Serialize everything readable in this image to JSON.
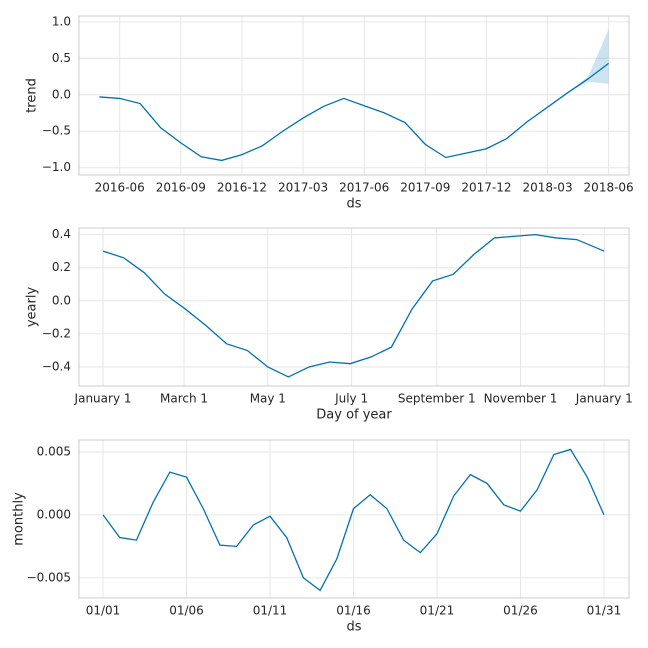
{
  "chart_data": [
    {
      "type": "line",
      "xlabel": "ds",
      "ylabel": "trend",
      "color": "#0072b2",
      "grid": true,
      "x": [
        "2016-05",
        "2016-06",
        "2016-07",
        "2016-08",
        "2016-09",
        "2016-10",
        "2016-11",
        "2016-12",
        "2017-01",
        "2017-02",
        "2017-03",
        "2017-04",
        "2017-05",
        "2017-06",
        "2017-07",
        "2017-08",
        "2017-09",
        "2017-10",
        "2017-11",
        "2017-12",
        "2018-01",
        "2018-02",
        "2018-03",
        "2018-04",
        "2018-05",
        "2018-06"
      ],
      "values": [
        -0.03,
        -0.05,
        -0.12,
        -0.45,
        -0.66,
        -0.85,
        -0.9,
        -0.82,
        -0.7,
        -0.5,
        -0.32,
        -0.16,
        -0.05,
        -0.15,
        -0.25,
        -0.38,
        -0.68,
        -0.86,
        -0.8,
        -0.74,
        -0.6,
        -0.37,
        -0.17,
        0.03,
        0.22,
        0.43
      ],
      "band": {
        "x": [
          "2018-04",
          "2018-05",
          "2018-06"
        ],
        "lower": [
          0.03,
          0.18,
          0.15
        ],
        "upper": [
          0.03,
          0.25,
          0.9
        ]
      },
      "xlim": [
        "2016-04",
        "2018-07"
      ],
      "ylim": [
        -1.1,
        1.08
      ],
      "xticks": [
        "2016-06",
        "2016-09",
        "2016-12",
        "2017-03",
        "2017-06",
        "2017-09",
        "2017-12",
        "2018-03",
        "2018-06"
      ],
      "yticks": [
        {
          "value": 1.0,
          "label": "1.0"
        },
        {
          "value": 0.5,
          "label": "0.5"
        },
        {
          "value": 0,
          "label": "0.0"
        },
        {
          "value": -0.5,
          "label": "−0.5"
        },
        {
          "value": -1.0,
          "label": "−1.0"
        }
      ]
    },
    {
      "type": "line",
      "xlabel": "Day of year",
      "ylabel": "yearly",
      "color": "#0072b2",
      "grid": true,
      "x": [
        0,
        15,
        30,
        45,
        60,
        75,
        90,
        105,
        120,
        135,
        150,
        165,
        180,
        195,
        210,
        225,
        240,
        255,
        270,
        285,
        300,
        315,
        330,
        345,
        365
      ],
      "values": [
        0.3,
        0.26,
        0.17,
        0.04,
        -0.05,
        -0.15,
        -0.26,
        -0.3,
        -0.4,
        -0.46,
        -0.4,
        -0.37,
        -0.38,
        -0.34,
        -0.28,
        -0.05,
        0.12,
        0.16,
        0.28,
        0.38,
        0.39,
        0.4,
        0.38,
        0.37,
        0.3
      ],
      "xlim": [
        -17.5,
        383
      ],
      "ylim": [
        -0.515,
        0.44
      ],
      "xticks": [
        {
          "value": 0,
          "label": "January 1"
        },
        {
          "value": 59,
          "label": "March 1"
        },
        {
          "value": 120,
          "label": "May 1"
        },
        {
          "value": 181,
          "label": "July 1"
        },
        {
          "value": 243,
          "label": "September 1"
        },
        {
          "value": 304,
          "label": "November 1"
        },
        {
          "value": 365,
          "label": "January 1"
        }
      ],
      "yticks": [
        {
          "value": 0.4,
          "label": "0.4"
        },
        {
          "value": 0.2,
          "label": "0.2"
        },
        {
          "value": 0,
          "label": "0.0"
        },
        {
          "value": -0.2,
          "label": "−0.2"
        },
        {
          "value": -0.4,
          "label": "−0.4"
        }
      ]
    },
    {
      "type": "line",
      "xlabel": "ds",
      "ylabel": "monthly",
      "color": "#0072b2",
      "grid": true,
      "x": [
        0,
        1,
        2,
        3,
        4,
        5,
        6,
        7,
        8,
        9,
        10,
        11,
        12,
        13,
        14,
        15,
        16,
        17,
        18,
        19,
        20,
        21,
        22,
        23,
        24,
        25,
        26,
        27,
        28,
        29,
        30
      ],
      "values": [
        0,
        -0.0018,
        -0.002,
        0.001,
        0.0034,
        0.003,
        0.0005,
        -0.0024,
        -0.0025,
        -0.0008,
        -0.0001,
        -0.0018,
        -0.005,
        -0.006,
        -0.0035,
        0.0005,
        0.0016,
        0.0005,
        -0.002,
        -0.003,
        -0.0015,
        0.0015,
        0.0032,
        0.0025,
        0.0008,
        0.0003,
        0.002,
        0.0048,
        0.0052,
        0.003,
        0
      ],
      "xlim": [
        -1.44,
        31.5
      ],
      "ylim": [
        -0.0066,
        0.00595
      ],
      "xticks": [
        {
          "value": 0,
          "label": "01/01"
        },
        {
          "value": 5,
          "label": "01/06"
        },
        {
          "value": 10,
          "label": "01/11"
        },
        {
          "value": 15,
          "label": "01/16"
        },
        {
          "value": 20,
          "label": "01/21"
        },
        {
          "value": 25,
          "label": "01/26"
        },
        {
          "value": 30,
          "label": "01/31"
        }
      ],
      "yticks": [
        {
          "value": 0.005,
          "label": "0.005"
        },
        {
          "value": 0,
          "label": "0.000"
        },
        {
          "value": -0.005,
          "label": "−0.005"
        }
      ]
    }
  ]
}
